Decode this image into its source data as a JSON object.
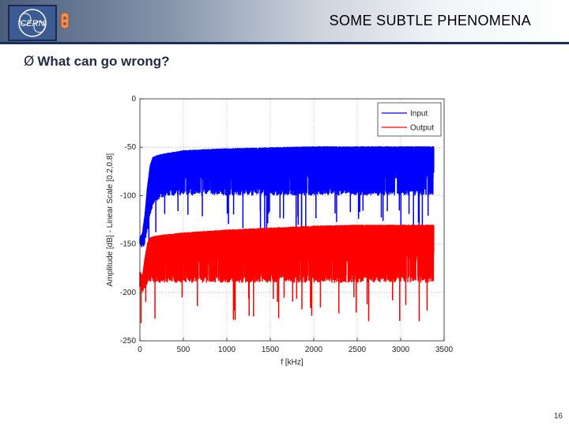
{
  "slide": {
    "title": "SOME SUBTLE PHENOMENA",
    "bullet_marker": "Ø",
    "bullet": "What can go wrong?",
    "page_number": "16",
    "logo_text": "CERN"
  },
  "colors": {
    "input": "#0000ff",
    "output": "#ff0000",
    "header_rule": "#1c2d57"
  },
  "chart_data": {
    "type": "line",
    "xlabel": "f [kHz]",
    "ylabel": "Amplitude [dB] - Linear Scale [0.2,0.8]",
    "xlim": [
      0,
      3500
    ],
    "ylim": [
      -250,
      0
    ],
    "xticks": [
      0,
      500,
      1000,
      1500,
      2000,
      2500,
      3000,
      3500
    ],
    "yticks": [
      0,
      -50,
      -100,
      -150,
      -200,
      -250
    ],
    "grid": true,
    "legend": "top-right",
    "series": [
      {
        "name": "Input",
        "x": [
          0,
          30,
          60,
          90,
          120,
          150,
          200,
          300,
          500,
          1000,
          1500,
          2000,
          2500,
          3000,
          3380
        ],
        "upper": [
          -145,
          -140,
          -120,
          -90,
          -70,
          -62,
          -60,
          -58,
          -55,
          -53,
          -52,
          -51,
          -51,
          -51,
          -51
        ],
        "lower": [
          -150,
          -155,
          -150,
          -135,
          -120,
          -110,
          -105,
          -100,
          -100,
          -100,
          -100,
          -100,
          -100,
          -100,
          -100
        ]
      },
      {
        "name": "Output",
        "x": [
          0,
          30,
          60,
          90,
          120,
          150,
          200,
          300,
          500,
          1000,
          1500,
          2000,
          2500,
          3000,
          3380
        ],
        "upper": [
          -180,
          -185,
          -165,
          -150,
          -145,
          -144,
          -143,
          -142,
          -140,
          -137,
          -135,
          -133,
          -132,
          -132,
          -132
        ],
        "lower": [
          -195,
          -200,
          -195,
          -190,
          -190,
          -190,
          -190,
          -190,
          -190,
          -190,
          -190,
          -190,
          -190,
          -190,
          -190
        ]
      }
    ]
  }
}
